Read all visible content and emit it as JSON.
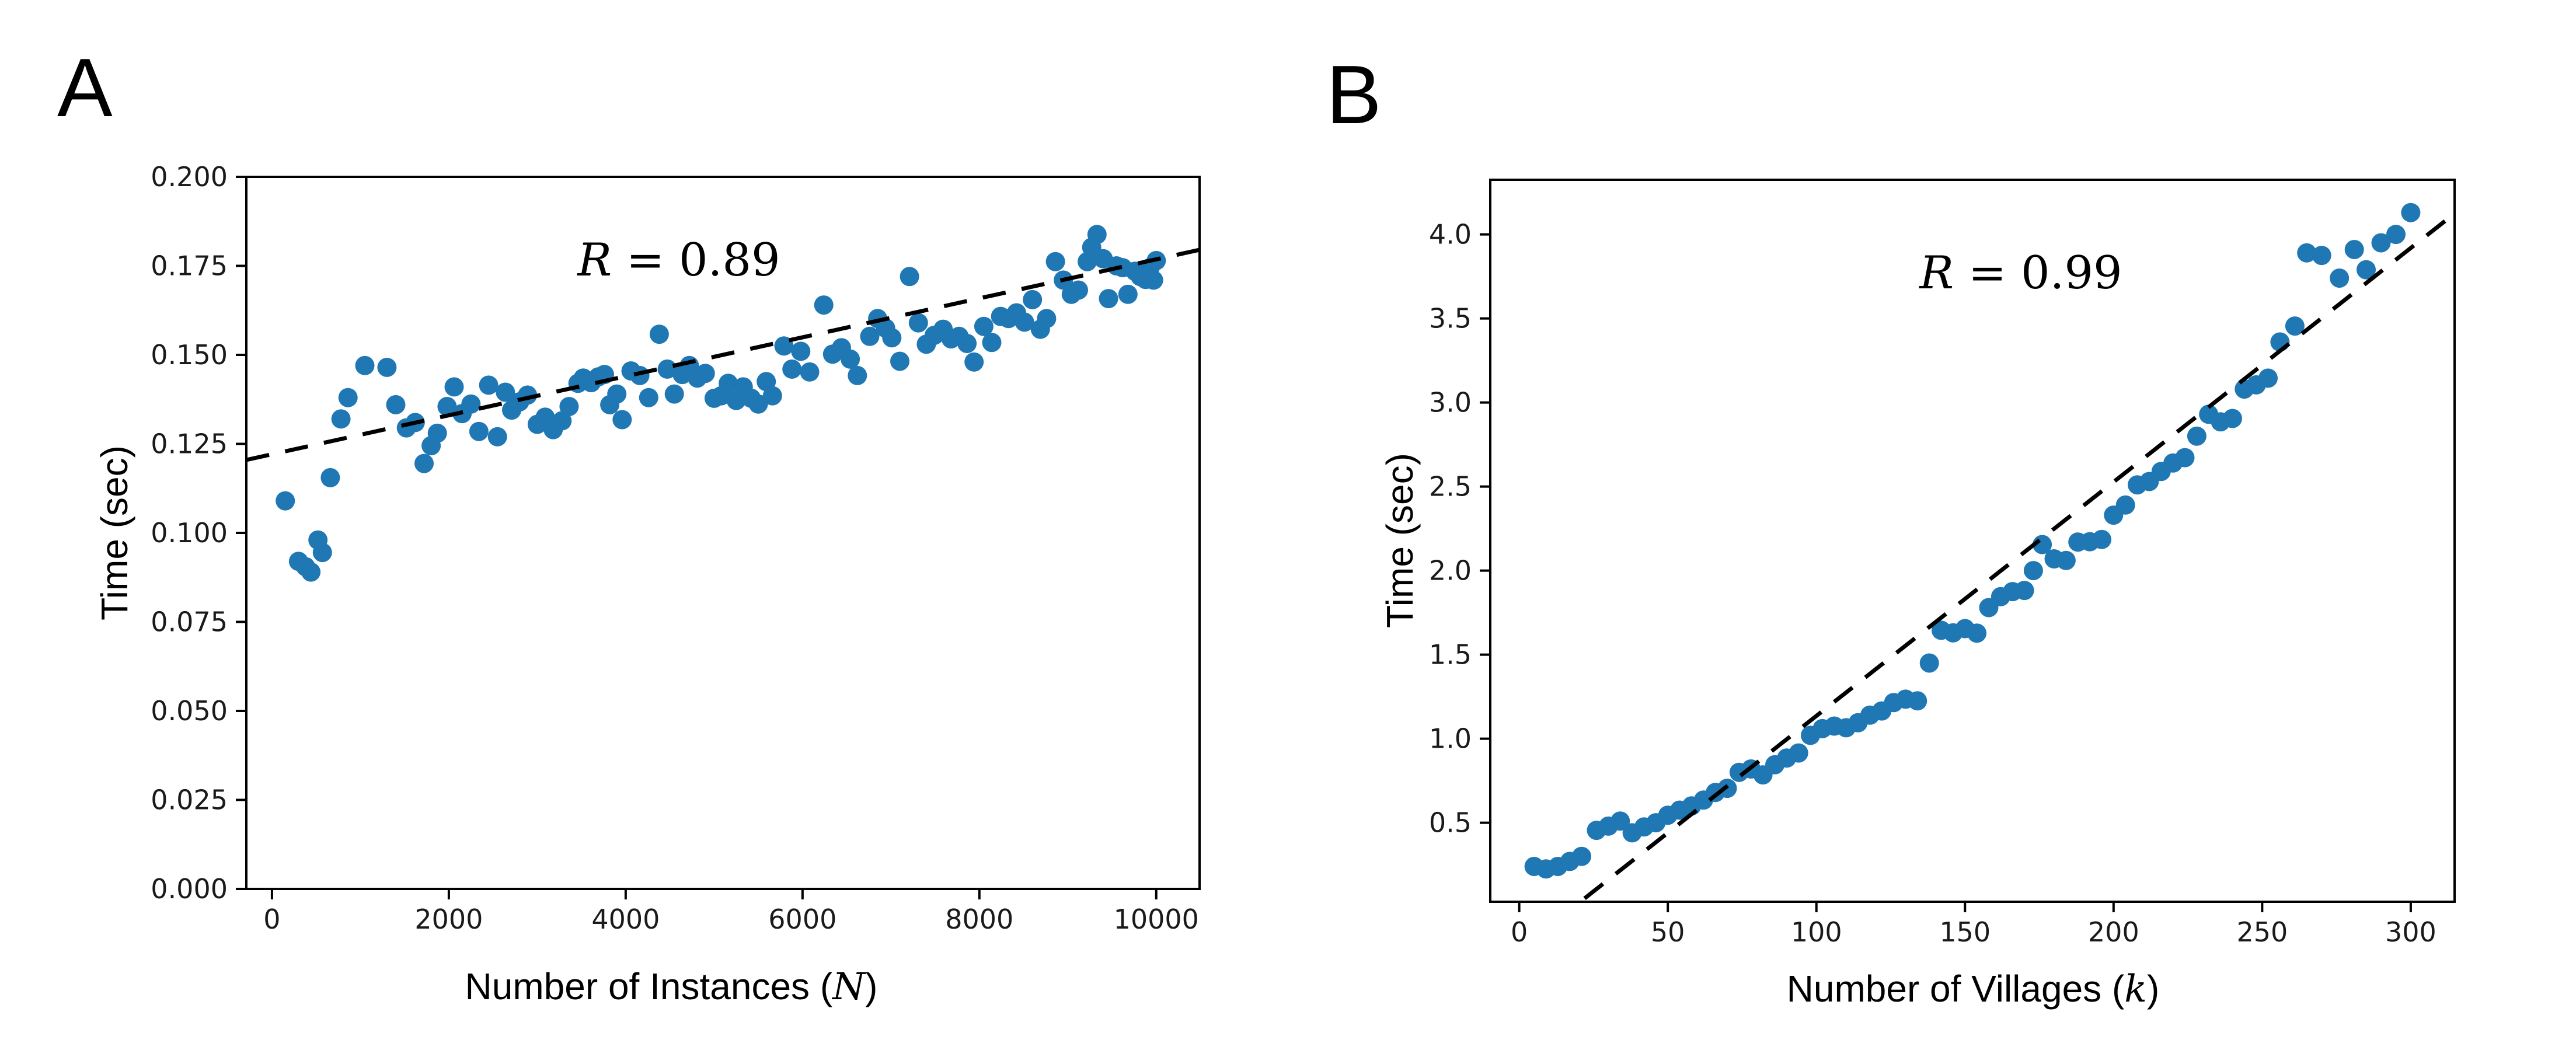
{
  "figure": {
    "background_color": "#ffffff",
    "frame_color": "#000000",
    "panel_a_letter": "A",
    "panel_b_letter": "B"
  },
  "chart_data": [
    {
      "panel_letter": "A",
      "type": "scatter",
      "annotation": {
        "var": "R",
        "rest": " = 0.89"
      },
      "xlabel": {
        "prefix": "Number of Instances (",
        "var": "N",
        "suffix": ")"
      },
      "ylabel": "Time (sec)",
      "xlim": [
        -290,
        10490
      ],
      "ylim": [
        0,
        0.2
      ],
      "x_ticks": [
        0,
        2000,
        4000,
        6000,
        8000,
        10000
      ],
      "x_tick_labels": [
        "0",
        "2000",
        "4000",
        "6000",
        "8000",
        "10000"
      ],
      "y_ticks": [
        0.0,
        0.025,
        0.05,
        0.075,
        0.1,
        0.125,
        0.15,
        0.175,
        0.2
      ],
      "y_tick_labels": [
        "0.000",
        "0.025",
        "0.050",
        "0.075",
        "0.100",
        "0.125",
        "0.150",
        "0.175",
        "0.200"
      ],
      "grid": false,
      "legend": "none",
      "point_color": "#1f77b4",
      "trend_color": "#000000",
      "trend": {
        "x": [
          -290,
          10490
        ],
        "y": [
          0.1205,
          0.1795
        ]
      },
      "points": [
        [
          150,
          0.109
        ],
        [
          300,
          0.092
        ],
        [
          380,
          0.0905
        ],
        [
          440,
          0.089
        ],
        [
          520,
          0.098
        ],
        [
          570,
          0.0945
        ],
        [
          660,
          0.1155
        ],
        [
          780,
          0.132
        ],
        [
          860,
          0.138
        ],
        [
          1050,
          0.147
        ],
        [
          1300,
          0.1465
        ],
        [
          1400,
          0.136
        ],
        [
          1520,
          0.1295
        ],
        [
          1620,
          0.131
        ],
        [
          1720,
          0.1195
        ],
        [
          1800,
          0.1245
        ],
        [
          1870,
          0.128
        ],
        [
          1980,
          0.1355
        ],
        [
          2060,
          0.141
        ],
        [
          2150,
          0.1335
        ],
        [
          2250,
          0.1362
        ],
        [
          2340,
          0.1285
        ],
        [
          2450,
          0.1415
        ],
        [
          2550,
          0.127
        ],
        [
          2640,
          0.1395
        ],
        [
          2710,
          0.1345
        ],
        [
          2800,
          0.1368
        ],
        [
          2890,
          0.1387
        ],
        [
          3000,
          0.1305
        ],
        [
          3090,
          0.1325
        ],
        [
          3180,
          0.129
        ],
        [
          3280,
          0.1315
        ],
        [
          3360,
          0.1355
        ],
        [
          3460,
          0.142
        ],
        [
          3520,
          0.1435
        ],
        [
          3610,
          0.1422
        ],
        [
          3690,
          0.1438
        ],
        [
          3760,
          0.1445
        ],
        [
          3820,
          0.136
        ],
        [
          3900,
          0.139
        ],
        [
          3960,
          0.1318
        ],
        [
          4060,
          0.1455
        ],
        [
          4160,
          0.1442
        ],
        [
          4260,
          0.138
        ],
        [
          4380,
          0.1558
        ],
        [
          4470,
          0.146
        ],
        [
          4550,
          0.139
        ],
        [
          4640,
          0.1445
        ],
        [
          4720,
          0.147
        ],
        [
          4810,
          0.1435
        ],
        [
          4900,
          0.1448
        ],
        [
          5000,
          0.1378
        ],
        [
          5080,
          0.1385
        ],
        [
          5160,
          0.142
        ],
        [
          5250,
          0.1372
        ],
        [
          5330,
          0.141
        ],
        [
          5420,
          0.1378
        ],
        [
          5500,
          0.1362
        ],
        [
          5590,
          0.1425
        ],
        [
          5660,
          0.1385
        ],
        [
          5790,
          0.1525
        ],
        [
          5880,
          0.146
        ],
        [
          5980,
          0.151
        ],
        [
          6080,
          0.1452
        ],
        [
          6240,
          0.164
        ],
        [
          6340,
          0.1502
        ],
        [
          6440,
          0.152
        ],
        [
          6540,
          0.1488
        ],
        [
          6620,
          0.1442
        ],
        [
          6760,
          0.1552
        ],
        [
          6850,
          0.1602
        ],
        [
          6940,
          0.1575
        ],
        [
          7010,
          0.1548
        ],
        [
          7100,
          0.1482
        ],
        [
          7210,
          0.172
        ],
        [
          7310,
          0.159
        ],
        [
          7400,
          0.153
        ],
        [
          7490,
          0.1555
        ],
        [
          7590,
          0.1572
        ],
        [
          7680,
          0.1545
        ],
        [
          7770,
          0.1552
        ],
        [
          7860,
          0.1532
        ],
        [
          7940,
          0.148
        ],
        [
          8050,
          0.158
        ],
        [
          8140,
          0.1535
        ],
        [
          8240,
          0.1608
        ],
        [
          8330,
          0.1602
        ],
        [
          8420,
          0.1618
        ],
        [
          8510,
          0.1592
        ],
        [
          8600,
          0.1655
        ],
        [
          8690,
          0.1572
        ],
        [
          8760,
          0.1602
        ],
        [
          8860,
          0.1762
        ],
        [
          8950,
          0.171
        ],
        [
          9040,
          0.167
        ],
        [
          9120,
          0.1682
        ],
        [
          9220,
          0.1762
        ],
        [
          9270,
          0.1802
        ],
        [
          9330,
          0.1838
        ],
        [
          9400,
          0.177
        ],
        [
          9460,
          0.1658
        ],
        [
          9550,
          0.175
        ],
        [
          9620,
          0.1745
        ],
        [
          9680,
          0.167
        ],
        [
          9760,
          0.1735
        ],
        [
          9820,
          0.172
        ],
        [
          9880,
          0.1712
        ],
        [
          9930,
          0.1745
        ],
        [
          9970,
          0.171
        ],
        [
          10000,
          0.1765
        ]
      ]
    },
    {
      "panel_letter": "B",
      "type": "scatter",
      "annotation": {
        "var": "R",
        "rest": " = 0.99"
      },
      "xlabel": {
        "prefix": "Number of Villages (",
        "var": "k",
        "suffix": ")"
      },
      "ylabel": "Time (sec)",
      "xlim": [
        -9.75,
        314.75
      ],
      "ylim": [
        0.03,
        4.325
      ],
      "x_ticks": [
        0,
        50,
        100,
        150,
        200,
        250,
        300
      ],
      "x_tick_labels": [
        "0",
        "50",
        "100",
        "150",
        "200",
        "250",
        "300"
      ],
      "y_ticks": [
        0.5,
        1.0,
        1.5,
        2.0,
        2.5,
        3.0,
        3.5,
        4.0
      ],
      "y_tick_labels": [
        "0.5",
        "1.0",
        "1.5",
        "2.0",
        "2.5",
        "3.0",
        "3.5",
        "4.0"
      ],
      "grid": false,
      "legend": "none",
      "point_color": "#1f77b4",
      "trend_color": "#000000",
      "trend": {
        "x": [
          22,
          313
        ],
        "y": [
          0.05,
          4.1
        ]
      },
      "points": [
        [
          5,
          0.24
        ],
        [
          9,
          0.225
        ],
        [
          13,
          0.24
        ],
        [
          17,
          0.27
        ],
        [
          21,
          0.3
        ],
        [
          26,
          0.455
        ],
        [
          30,
          0.48
        ],
        [
          34,
          0.51
        ],
        [
          38,
          0.44
        ],
        [
          42,
          0.475
        ],
        [
          46,
          0.5
        ],
        [
          50,
          0.545
        ],
        [
          54,
          0.575
        ],
        [
          58,
          0.6
        ],
        [
          62,
          0.635
        ],
        [
          66,
          0.68
        ],
        [
          70,
          0.705
        ],
        [
          74,
          0.8
        ],
        [
          78,
          0.82
        ],
        [
          82,
          0.785
        ],
        [
          86,
          0.845
        ],
        [
          90,
          0.885
        ],
        [
          94,
          0.915
        ],
        [
          98,
          1.02
        ],
        [
          102,
          1.06
        ],
        [
          106,
          1.075
        ],
        [
          110,
          1.065
        ],
        [
          114,
          1.095
        ],
        [
          118,
          1.14
        ],
        [
          122,
          1.165
        ],
        [
          126,
          1.215
        ],
        [
          130,
          1.235
        ],
        [
          134,
          1.225
        ],
        [
          138,
          1.45
        ],
        [
          142,
          1.645
        ],
        [
          146,
          1.63
        ],
        [
          150,
          1.655
        ],
        [
          154,
          1.628
        ],
        [
          158,
          1.78
        ],
        [
          162,
          1.845
        ],
        [
          166,
          1.875
        ],
        [
          170,
          1.882
        ],
        [
          173,
          2.0
        ],
        [
          176,
          2.155
        ],
        [
          180,
          2.07
        ],
        [
          184,
          2.06
        ],
        [
          188,
          2.17
        ],
        [
          192,
          2.172
        ],
        [
          196,
          2.185
        ],
        [
          200,
          2.33
        ],
        [
          204,
          2.39
        ],
        [
          208,
          2.51
        ],
        [
          212,
          2.53
        ],
        [
          216,
          2.59
        ],
        [
          220,
          2.64
        ],
        [
          224,
          2.672
        ],
        [
          228,
          2.8
        ],
        [
          232,
          2.93
        ],
        [
          236,
          2.885
        ],
        [
          240,
          2.905
        ],
        [
          244,
          3.08
        ],
        [
          248,
          3.105
        ],
        [
          252,
          3.145
        ],
        [
          256,
          3.36
        ],
        [
          261,
          3.455
        ],
        [
          265,
          3.89
        ],
        [
          270,
          3.875
        ],
        [
          276,
          3.74
        ],
        [
          281,
          3.91
        ],
        [
          285,
          3.79
        ],
        [
          290,
          3.95
        ],
        [
          295,
          4.0
        ],
        [
          300,
          4.13
        ]
      ]
    }
  ]
}
